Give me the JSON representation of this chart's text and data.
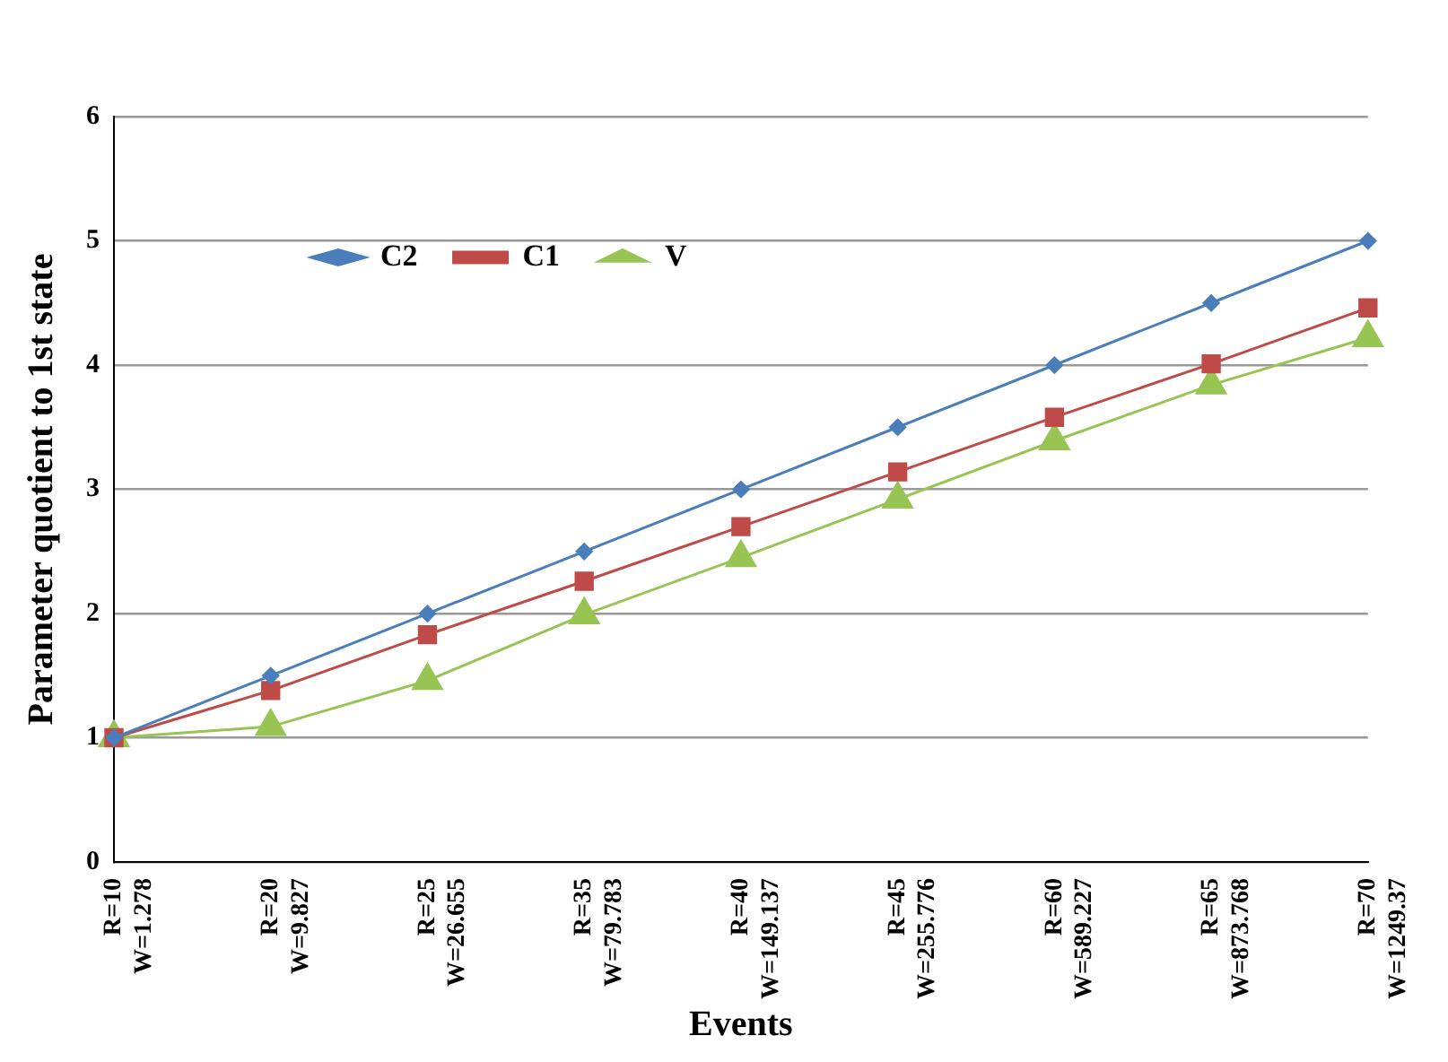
{
  "chart_data": {
    "type": "line",
    "xlabel": "Events",
    "ylabel": "Parameter quotient to 1st state",
    "categories": [
      "R=10 W=1.278",
      "R=20 W=9.827",
      "R=25 W=26.655",
      "R=35 W=79.783",
      "R=40 W=149.137",
      "R=45 W=255.776",
      "R=60 W=589.227",
      "R=65 W=873.768",
      "R=70 W=1249.37"
    ],
    "series": [
      {
        "name": "C2",
        "color": "#4a7ebb",
        "marker": "diamond",
        "values": [
          1,
          1.5,
          2,
          2.5,
          3,
          3.5,
          4,
          4.5,
          5
        ]
      },
      {
        "name": "C1",
        "color": "#be4b48",
        "marker": "square",
        "values": [
          1,
          1.38,
          1.83,
          2.26,
          2.7,
          3.14,
          3.58,
          4.01,
          4.46
        ]
      },
      {
        "name": "V",
        "color": "#98c454",
        "marker": "triangle",
        "values": [
          1,
          1.09,
          1.46,
          1.99,
          2.45,
          2.92,
          3.39,
          3.84,
          4.22
        ]
      }
    ],
    "ylim": [
      0,
      6
    ],
    "yticks": [
      0,
      1,
      2,
      3,
      4,
      5,
      6
    ],
    "grid": "y",
    "legend": "top left",
    "line_style": "solid"
  }
}
